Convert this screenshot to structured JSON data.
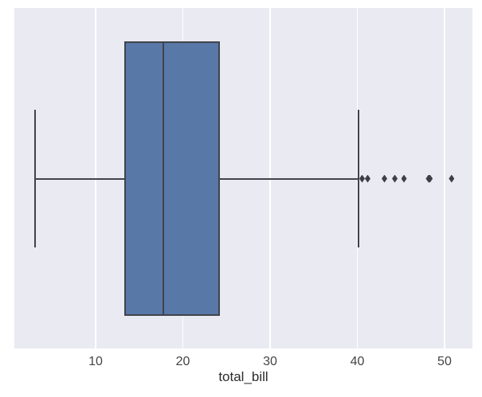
{
  "figure": {
    "background": "#ffffff",
    "plot_background": "#e9eaf2",
    "grid_color": "#ffffff",
    "box_fill": "#5878a8",
    "line_color": "#41434b",
    "outlier_color": "#3d3f47",
    "tick_label_color": "#444444",
    "axis_label_color": "#2b2b2b"
  },
  "chart_data": {
    "type": "boxplot",
    "orientation": "horizontal",
    "xlabel": "total_bill",
    "x_ticks": [
      10,
      20,
      30,
      40,
      50
    ],
    "xlim": [
      0.68,
      53.2
    ],
    "grid": true,
    "legend": false,
    "series": [
      {
        "name": "total_bill",
        "whisker_low": 3.07,
        "q1": 13.35,
        "median": 17.8,
        "q3": 24.13,
        "whisker_high": 40.17,
        "outliers": [
          40.55,
          41.19,
          43.11,
          44.3,
          45.35,
          48.17,
          48.27,
          48.33,
          50.81
        ]
      }
    ]
  }
}
